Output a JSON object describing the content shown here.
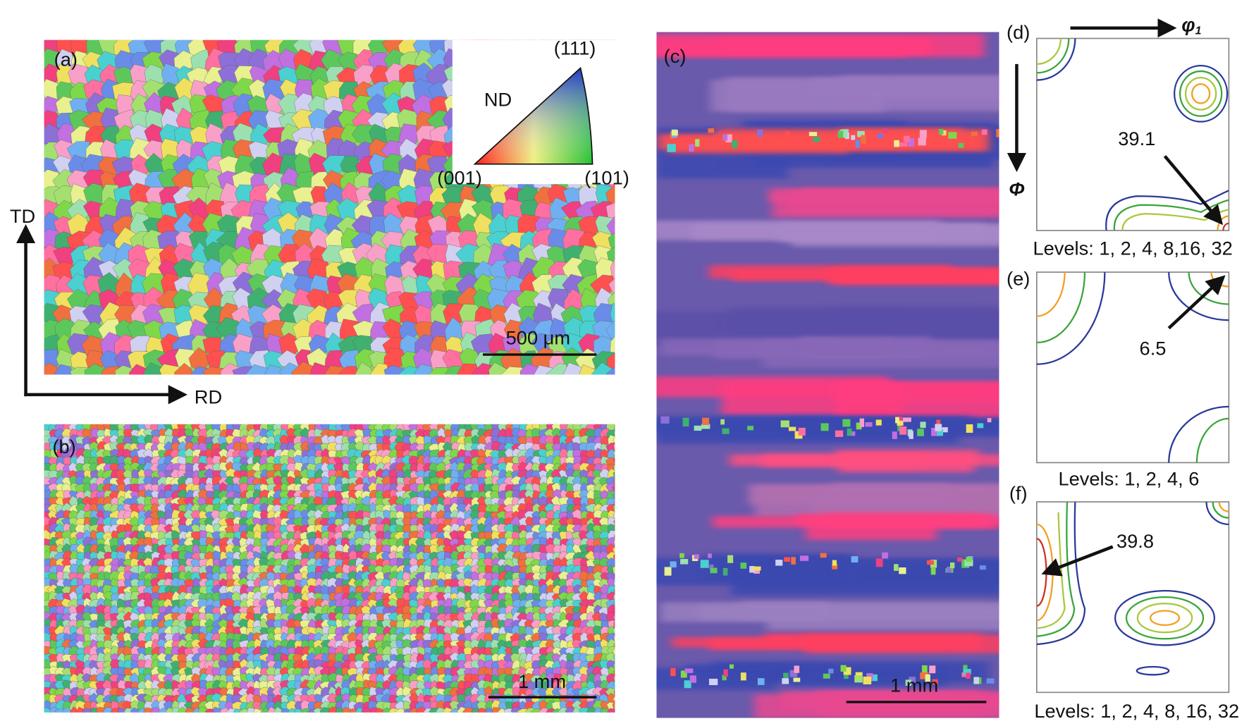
{
  "panels": {
    "a": {
      "label": "(a)",
      "ipf": {
        "top": "(111)",
        "axis": "ND",
        "left": "(001)",
        "right": "(101)"
      },
      "scale_bar": "500 μm"
    },
    "b": {
      "label": "(b)",
      "scale_bar": "1 mm"
    },
    "c": {
      "label": "(c)",
      "scale_bar": "1 mm"
    },
    "d": {
      "label": "(d)",
      "peak": "39.1",
      "levels": "Levels: 1, 2, 4, 8,16, 32"
    },
    "e": {
      "label": "(e)",
      "peak": "6.5",
      "levels": "Levels: 1, 2, 4, 6"
    },
    "f": {
      "label": "(f)",
      "peak": "39.8",
      "levels": "Levels: 1, 2, 4, 8, 16, 32"
    }
  },
  "axes": {
    "td": "TD",
    "rd": "RD",
    "phi1": "φ",
    "phi1_sub": "1",
    "Phi": "Φ"
  }
}
